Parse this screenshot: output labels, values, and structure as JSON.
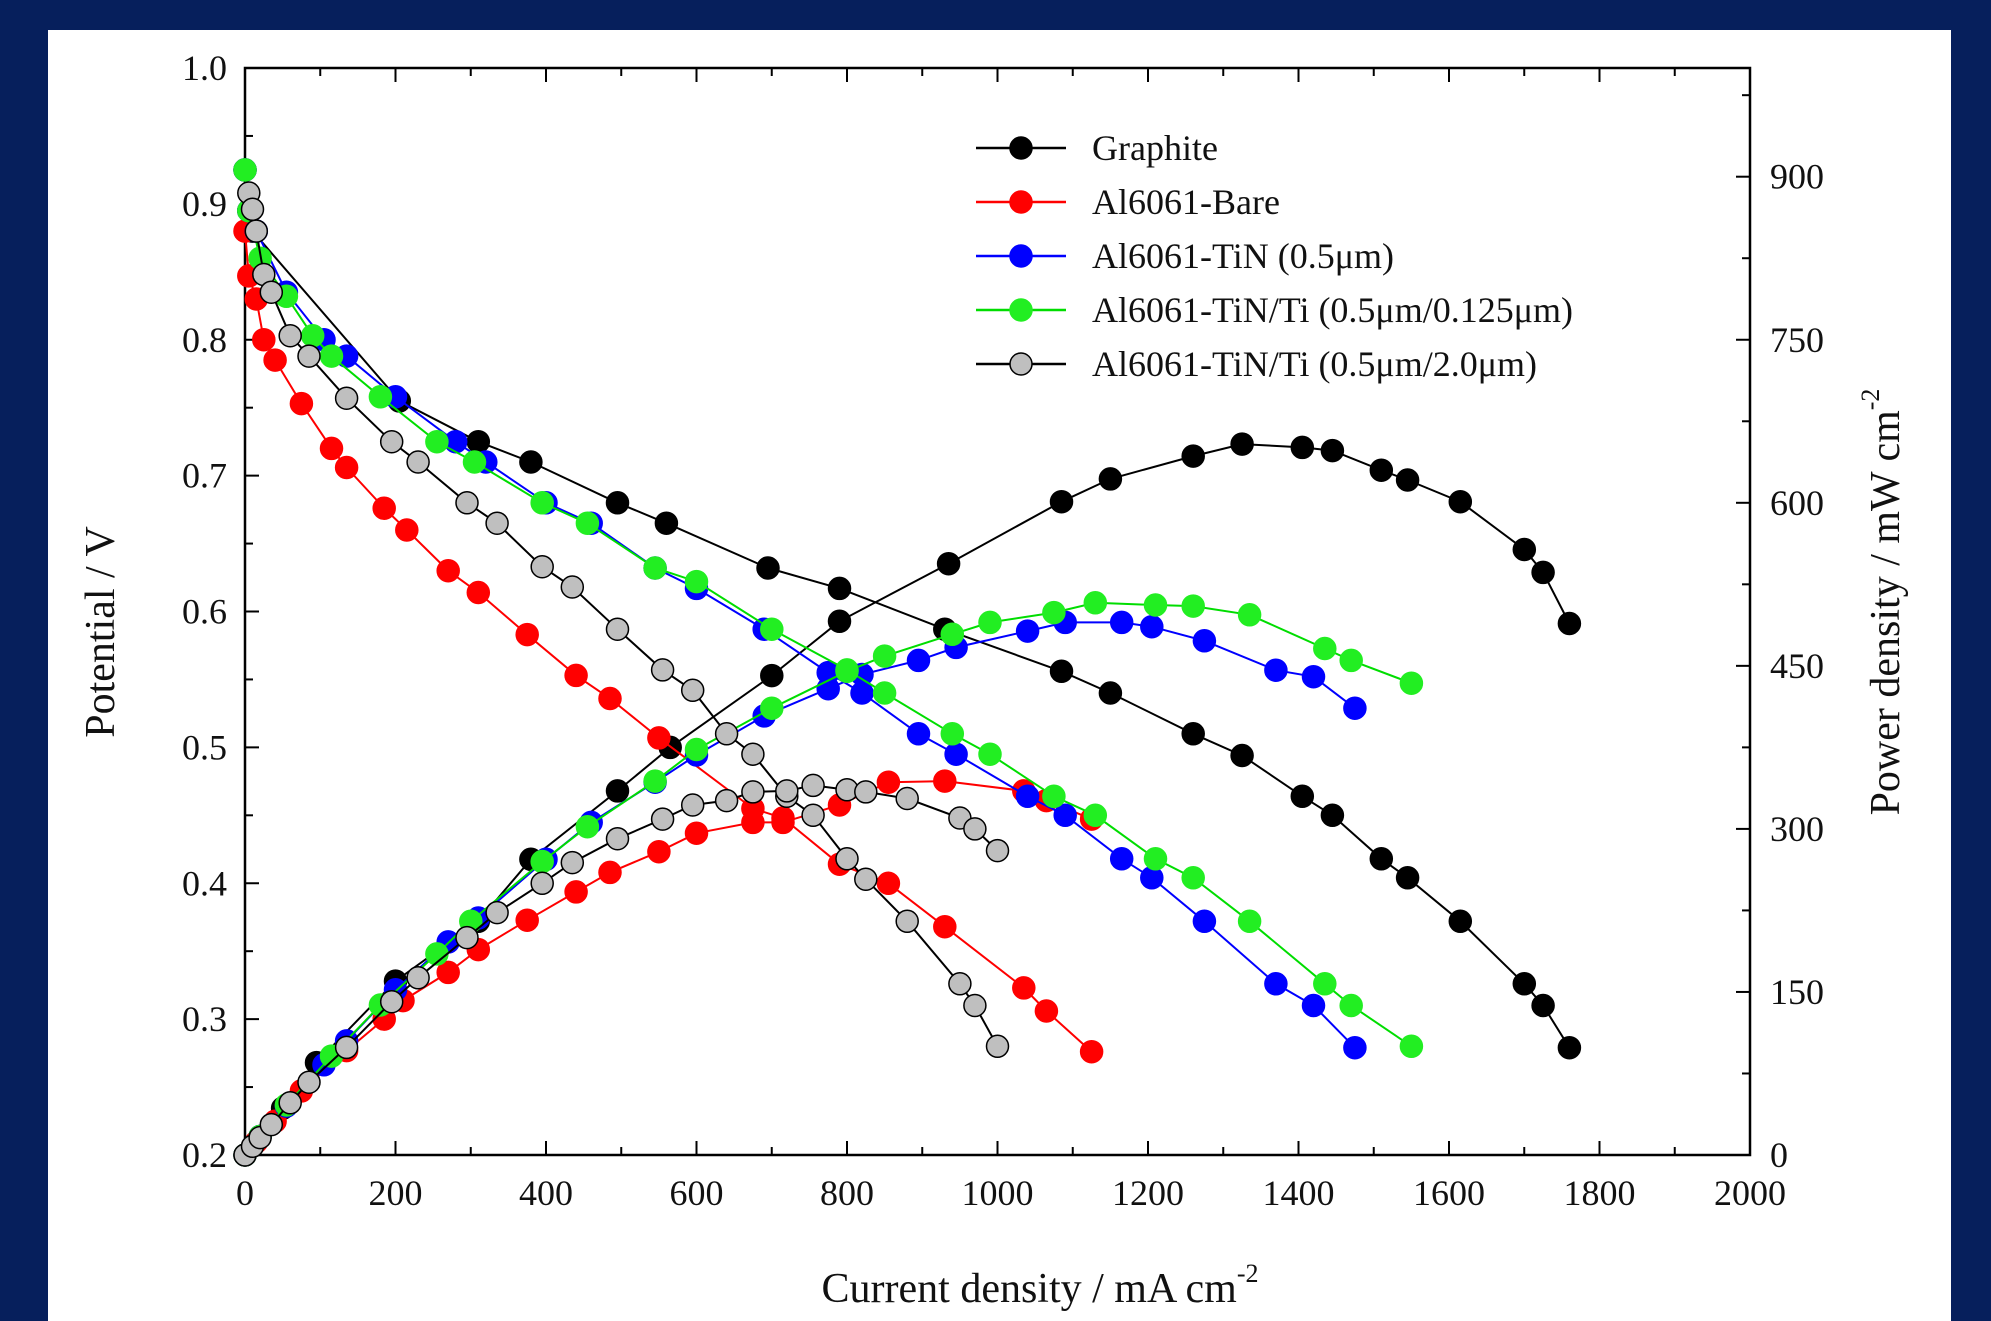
{
  "chart_data": {
    "type": "line",
    "xlabel": "Current density / mA cm",
    "xlabel_sup": "-2",
    "ylabel": "Potential / V",
    "y2label": "Power density / mW cm",
    "y2label_sup": "-2",
    "xlim": [
      0,
      2000
    ],
    "ylim": [
      0.2,
      1.0
    ],
    "y2lim": [
      0,
      1000
    ],
    "x_ticks": [
      0,
      200,
      400,
      600,
      800,
      1000,
      1200,
      1400,
      1600,
      1800,
      2000
    ],
    "y_ticks": [
      "0.2",
      "0.3",
      "0.4",
      "0.5",
      "0.6",
      "0.7",
      "0.8",
      "0.9",
      "1.0"
    ],
    "y2_ticks": [
      0,
      150,
      300,
      450,
      600,
      750,
      900
    ],
    "grid": false,
    "legend_position": "top-right",
    "series": [
      {
        "name": "Graphite",
        "color": "#000000",
        "fill": "#000000",
        "polarization": [
          [
            0,
            0.925
          ],
          [
            5,
            0.895
          ],
          [
            10,
            0.88
          ],
          [
            205,
            0.755
          ],
          [
            310,
            0.725
          ],
          [
            380,
            0.71
          ],
          [
            495,
            0.68
          ],
          [
            560,
            0.665
          ],
          [
            695,
            0.632
          ],
          [
            790,
            0.617
          ],
          [
            930,
            0.587
          ],
          [
            1085,
            0.556
          ],
          [
            1150,
            0.54
          ],
          [
            1260,
            0.51
          ],
          [
            1325,
            0.494
          ],
          [
            1405,
            0.464
          ],
          [
            1445,
            0.45
          ],
          [
            1510,
            0.418
          ],
          [
            1545,
            0.404
          ],
          [
            1615,
            0.372
          ],
          [
            1700,
            0.326
          ],
          [
            1725,
            0.31
          ],
          [
            1760,
            0.279
          ]
        ],
        "power": [
          [
            0,
            0
          ],
          [
            20,
            17
          ],
          [
            50,
            43
          ],
          [
            95,
            85
          ],
          [
            200,
            160
          ],
          [
            310,
            215
          ],
          [
            380,
            272
          ],
          [
            495,
            335
          ],
          [
            565,
            375
          ],
          [
            700,
            441
          ],
          [
            790,
            491
          ],
          [
            935,
            544
          ],
          [
            1085,
            601
          ],
          [
            1150,
            622
          ],
          [
            1260,
            643
          ],
          [
            1325,
            654
          ],
          [
            1405,
            651
          ],
          [
            1445,
            648
          ],
          [
            1510,
            630
          ],
          [
            1545,
            621
          ],
          [
            1615,
            601
          ],
          [
            1700,
            557
          ],
          [
            1725,
            536
          ],
          [
            1760,
            489
          ]
        ]
      },
      {
        "name": "Al6061-Bare",
        "color": "#ff0000",
        "fill": "#ff0000",
        "polarization": [
          [
            0,
            0.88
          ],
          [
            5,
            0.847
          ],
          [
            15,
            0.83
          ],
          [
            25,
            0.8
          ],
          [
            40,
            0.785
          ],
          [
            75,
            0.753
          ],
          [
            115,
            0.72
          ],
          [
            135,
            0.706
          ],
          [
            185,
            0.676
          ],
          [
            215,
            0.66
          ],
          [
            270,
            0.63
          ],
          [
            310,
            0.614
          ],
          [
            375,
            0.583
          ],
          [
            440,
            0.553
          ],
          [
            485,
            0.536
          ],
          [
            550,
            0.507
          ],
          [
            675,
            0.455
          ],
          [
            715,
            0.448
          ],
          [
            790,
            0.414
          ],
          [
            855,
            0.4
          ],
          [
            930,
            0.368
          ],
          [
            1035,
            0.323
          ],
          [
            1065,
            0.306
          ],
          [
            1125,
            0.276
          ]
        ],
        "power": [
          [
            0,
            0
          ],
          [
            15,
            12
          ],
          [
            40,
            31
          ],
          [
            75,
            59
          ],
          [
            135,
            96
          ],
          [
            185,
            125
          ],
          [
            210,
            142
          ],
          [
            270,
            168
          ],
          [
            310,
            189
          ],
          [
            375,
            216
          ],
          [
            440,
            242
          ],
          [
            485,
            260
          ],
          [
            550,
            279
          ],
          [
            600,
            296
          ],
          [
            675,
            306
          ],
          [
            715,
            306
          ],
          [
            790,
            322
          ],
          [
            855,
            343
          ],
          [
            930,
            344
          ],
          [
            1035,
            335
          ],
          [
            1065,
            326
          ],
          [
            1125,
            309
          ]
        ]
      },
      {
        "name": "Al6061-TiN (0.5μm)",
        "color": "#0000ff",
        "fill": "#0000ff",
        "polarization": [
          [
            0,
            0.925
          ],
          [
            5,
            0.895
          ],
          [
            15,
            0.88
          ],
          [
            55,
            0.835
          ],
          [
            105,
            0.8
          ],
          [
            135,
            0.788
          ],
          [
            200,
            0.758
          ],
          [
            280,
            0.725
          ],
          [
            320,
            0.71
          ],
          [
            400,
            0.68
          ],
          [
            460,
            0.665
          ],
          [
            545,
            0.632
          ],
          [
            600,
            0.617
          ],
          [
            690,
            0.587
          ],
          [
            775,
            0.555
          ],
          [
            820,
            0.54
          ],
          [
            895,
            0.51
          ],
          [
            945,
            0.495
          ],
          [
            1040,
            0.464
          ],
          [
            1090,
            0.45
          ],
          [
            1165,
            0.418
          ],
          [
            1205,
            0.404
          ],
          [
            1275,
            0.372
          ],
          [
            1370,
            0.326
          ],
          [
            1420,
            0.31
          ],
          [
            1475,
            0.279
          ]
        ],
        "power": [
          [
            0,
            0
          ],
          [
            20,
            17
          ],
          [
            55,
            45
          ],
          [
            105,
            83
          ],
          [
            135,
            105
          ],
          [
            200,
            152
          ],
          [
            270,
            196
          ],
          [
            310,
            218
          ],
          [
            400,
            272
          ],
          [
            460,
            306
          ],
          [
            545,
            343
          ],
          [
            600,
            368
          ],
          [
            690,
            404
          ],
          [
            775,
            429
          ],
          [
            820,
            442
          ],
          [
            895,
            455
          ],
          [
            945,
            467
          ],
          [
            1040,
            482
          ],
          [
            1090,
            490
          ],
          [
            1165,
            490
          ],
          [
            1205,
            486
          ],
          [
            1275,
            473
          ],
          [
            1370,
            446
          ],
          [
            1420,
            440
          ],
          [
            1475,
            411
          ]
        ]
      },
      {
        "name": "Al6061-TiN/Ti (0.5μm/0.125μm)",
        "color": "#00dd00",
        "fill": "#22ee22",
        "polarization": [
          [
            0,
            0.925
          ],
          [
            5,
            0.895
          ],
          [
            20,
            0.86
          ],
          [
            55,
            0.832
          ],
          [
            90,
            0.803
          ],
          [
            115,
            0.788
          ],
          [
            180,
            0.758
          ],
          [
            255,
            0.725
          ],
          [
            305,
            0.71
          ],
          [
            395,
            0.68
          ],
          [
            455,
            0.665
          ],
          [
            545,
            0.632
          ],
          [
            600,
            0.622
          ],
          [
            700,
            0.587
          ],
          [
            800,
            0.557
          ],
          [
            850,
            0.54
          ],
          [
            940,
            0.51
          ],
          [
            990,
            0.495
          ],
          [
            1075,
            0.464
          ],
          [
            1130,
            0.45
          ],
          [
            1210,
            0.418
          ],
          [
            1260,
            0.404
          ],
          [
            1335,
            0.372
          ],
          [
            1435,
            0.326
          ],
          [
            1470,
            0.31
          ],
          [
            1550,
            0.28
          ]
        ],
        "power": [
          [
            0,
            0
          ],
          [
            20,
            17
          ],
          [
            55,
            46
          ],
          [
            115,
            91
          ],
          [
            180,
            138
          ],
          [
            255,
            185
          ],
          [
            300,
            215
          ],
          [
            395,
            270
          ],
          [
            455,
            302
          ],
          [
            545,
            344
          ],
          [
            600,
            373
          ],
          [
            700,
            411
          ],
          [
            800,
            445
          ],
          [
            850,
            459
          ],
          [
            940,
            479
          ],
          [
            990,
            490
          ],
          [
            1075,
            499
          ],
          [
            1130,
            508
          ],
          [
            1210,
            506
          ],
          [
            1260,
            505
          ],
          [
            1335,
            497
          ],
          [
            1435,
            466
          ],
          [
            1470,
            455
          ],
          [
            1550,
            434
          ]
        ]
      },
      {
        "name": "Al6061-TiN/Ti (0.5μm/2.0μm)",
        "color": "#000000",
        "fill": "#bfbfbf",
        "polarization": [
          [
            5,
            0.908
          ],
          [
            10,
            0.896
          ],
          [
            15,
            0.88
          ],
          [
            25,
            0.848
          ],
          [
            35,
            0.835
          ],
          [
            60,
            0.803
          ],
          [
            85,
            0.788
          ],
          [
            135,
            0.757
          ],
          [
            195,
            0.725
          ],
          [
            230,
            0.71
          ],
          [
            295,
            0.68
          ],
          [
            335,
            0.665
          ],
          [
            395,
            0.633
          ],
          [
            435,
            0.618
          ],
          [
            495,
            0.587
          ],
          [
            555,
            0.557
          ],
          [
            595,
            0.542
          ],
          [
            640,
            0.51
          ],
          [
            675,
            0.495
          ],
          [
            720,
            0.464
          ],
          [
            755,
            0.45
          ],
          [
            800,
            0.418
          ],
          [
            825,
            0.403
          ],
          [
            880,
            0.372
          ],
          [
            950,
            0.326
          ],
          [
            970,
            0.31
          ],
          [
            1000,
            0.28
          ]
        ],
        "power": [
          [
            0,
            0
          ],
          [
            10,
            8
          ],
          [
            20,
            16
          ],
          [
            35,
            28
          ],
          [
            60,
            48
          ],
          [
            85,
            67
          ],
          [
            135,
            99
          ],
          [
            195,
            141
          ],
          [
            230,
            163
          ],
          [
            295,
            200
          ],
          [
            335,
            223
          ],
          [
            395,
            250
          ],
          [
            435,
            269
          ],
          [
            495,
            291
          ],
          [
            555,
            309
          ],
          [
            595,
            322
          ],
          [
            640,
            326
          ],
          [
            675,
            334
          ],
          [
            720,
            335
          ],
          [
            755,
            340
          ],
          [
            800,
            336
          ],
          [
            825,
            334
          ],
          [
            880,
            328
          ],
          [
            950,
            310
          ],
          [
            970,
            300
          ],
          [
            1000,
            280
          ]
        ]
      }
    ]
  }
}
